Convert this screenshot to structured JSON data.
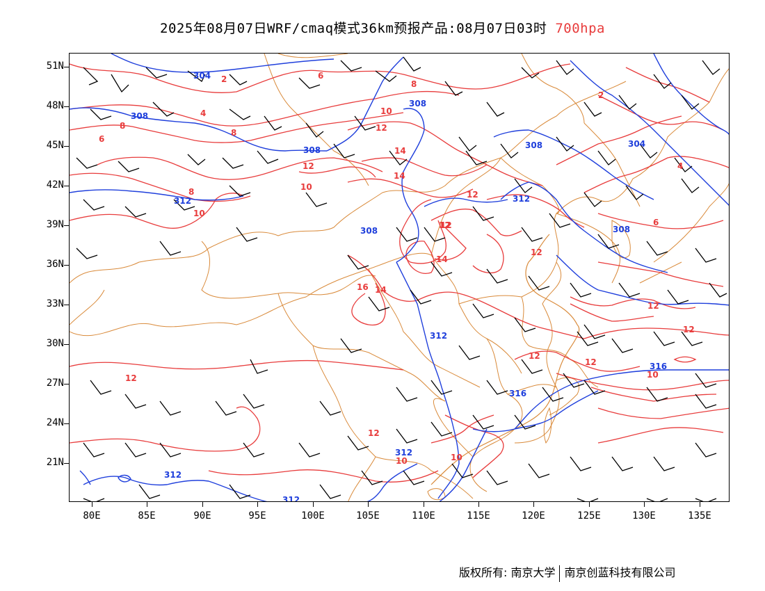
{
  "title": {
    "main": "2025年08月07日WRF/cmaq模式36km预报产品:08月07日03时",
    "level": "700hpa"
  },
  "axes": {
    "lat_labels": [
      "51N",
      "48N",
      "45N",
      "42N",
      "39N",
      "36N",
      "33N",
      "30N",
      "27N",
      "24N",
      "21N"
    ],
    "lon_labels": [
      "80E",
      "85E",
      "90E",
      "95E",
      "100E",
      "105E",
      "110E",
      "115E",
      "120E",
      "125E",
      "130E",
      "135E"
    ]
  },
  "legend_colors": {
    "geopotential_height": "#1f3fdc",
    "temperature": "#e83c3c",
    "boundary": "#d98a3a",
    "wind_barb": "#000000"
  },
  "contour_labels": {
    "height": [
      "304",
      "308",
      "308",
      "308",
      "312",
      "308",
      "312",
      "312",
      "312",
      "316",
      "316",
      "312",
      "312",
      "308",
      "304",
      "308"
    ],
    "temperature": [
      "2",
      "4",
      "6",
      "8",
      "8",
      "6",
      "8",
      "10",
      "12",
      "12",
      "14",
      "14",
      "10",
      "12",
      "12",
      "8",
      "10",
      "6",
      "4",
      "12",
      "14",
      "12",
      "16",
      "14",
      "12",
      "12",
      "12",
      "12",
      "12",
      "10",
      "12",
      "10",
      "10",
      "2"
    ]
  },
  "footer": {
    "copyright": "版权所有: 南京大学",
    "company": "南京创蓝科技有限公司"
  }
}
